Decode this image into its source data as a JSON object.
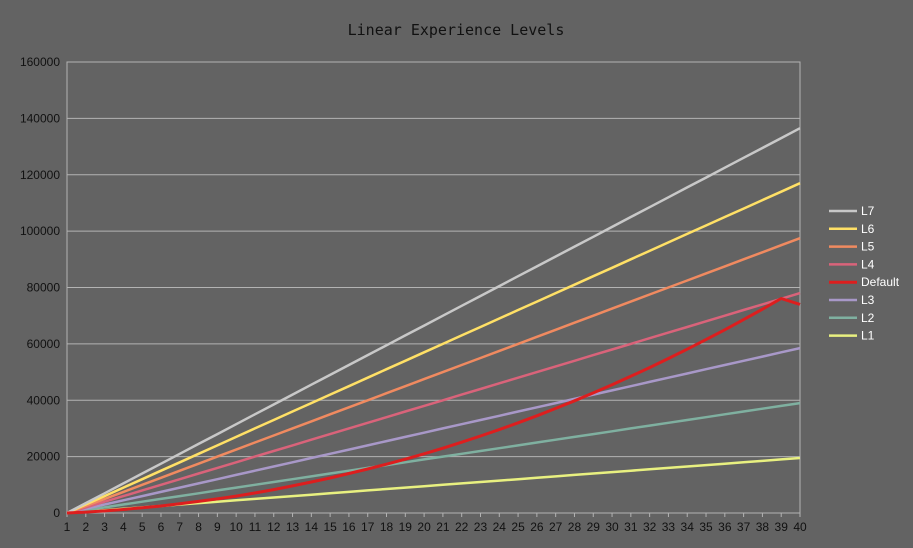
{
  "chart_data": {
    "type": "line",
    "title": "Linear Experience Levels",
    "xlabel": "",
    "ylabel": "",
    "x": [
      1,
      2,
      3,
      4,
      5,
      6,
      7,
      8,
      9,
      10,
      11,
      12,
      13,
      14,
      15,
      16,
      17,
      18,
      19,
      20,
      21,
      22,
      23,
      24,
      25,
      26,
      27,
      28,
      29,
      30,
      31,
      32,
      33,
      34,
      35,
      36,
      37,
      38,
      39,
      40
    ],
    "ylim": [
      0,
      160000
    ],
    "yticks": [
      0,
      20000,
      40000,
      60000,
      80000,
      100000,
      120000,
      140000,
      160000
    ],
    "grid": true,
    "legend_position": "right",
    "series": [
      {
        "name": "L7",
        "color": "#c8c8c8",
        "values": [
          0,
          3500,
          7000,
          10500,
          14000,
          17500,
          21000,
          24500,
          28000,
          31500,
          35000,
          38500,
          42000,
          45500,
          49000,
          52500,
          56000,
          59500,
          63000,
          66500,
          70000,
          73500,
          77000,
          80500,
          84000,
          87500,
          91000,
          94500,
          98000,
          101500,
          105000,
          108500,
          112000,
          115500,
          119000,
          122500,
          126000,
          129500,
          133000,
          136500
        ]
      },
      {
        "name": "L6",
        "color": "#ffe066",
        "values": [
          0,
          3000,
          6000,
          9000,
          12000,
          15000,
          18000,
          21000,
          24000,
          27000,
          30000,
          33000,
          36000,
          39000,
          42000,
          45000,
          48000,
          51000,
          54000,
          57000,
          60000,
          63000,
          66000,
          69000,
          72000,
          75000,
          78000,
          81000,
          84000,
          87000,
          90000,
          93000,
          96000,
          99000,
          102000,
          105000,
          108000,
          111000,
          114000,
          117000
        ]
      },
      {
        "name": "L5",
        "color": "#f08a60",
        "values": [
          0,
          2500,
          5000,
          7500,
          10000,
          12500,
          15000,
          17500,
          20000,
          22500,
          25000,
          27500,
          30000,
          32500,
          35000,
          37500,
          40000,
          42500,
          45000,
          47500,
          50000,
          52500,
          55000,
          57500,
          60000,
          62500,
          65000,
          67500,
          70000,
          72500,
          75000,
          77500,
          80000,
          82500,
          85000,
          87500,
          90000,
          92500,
          95000,
          97500
        ]
      },
      {
        "name": "L4",
        "color": "#d9637a",
        "values": [
          0,
          2000,
          4000,
          6000,
          8000,
          10000,
          12000,
          14000,
          16000,
          18000,
          20000,
          22000,
          24000,
          26000,
          28000,
          30000,
          32000,
          34000,
          36000,
          38000,
          40000,
          42000,
          44000,
          46000,
          48000,
          50000,
          52000,
          54000,
          56000,
          58000,
          60000,
          62000,
          64000,
          66000,
          68000,
          70000,
          72000,
          74000,
          76000,
          78000
        ]
      },
      {
        "name": "Default",
        "color": "#dd1e1e",
        "values": [
          0,
          330,
          750,
          1250,
          1850,
          2500,
          3250,
          4100,
          5000,
          6000,
          7100,
          8300,
          9600,
          11000,
          12400,
          14000,
          15600,
          17300,
          19100,
          21000,
          23000,
          25100,
          27300,
          29600,
          32000,
          34500,
          37100,
          39800,
          42600,
          45500,
          48500,
          51600,
          54800,
          58100,
          61500,
          65000,
          68600,
          72300,
          76100,
          74000
        ]
      },
      {
        "name": "L3",
        "color": "#a898c8",
        "values": [
          0,
          1500,
          3000,
          4500,
          6000,
          7500,
          9000,
          10500,
          12000,
          13500,
          15000,
          16500,
          18000,
          19500,
          21000,
          22500,
          24000,
          25500,
          27000,
          28500,
          30000,
          31500,
          33000,
          34500,
          36000,
          37500,
          39000,
          40500,
          42000,
          43500,
          45000,
          46500,
          48000,
          49500,
          51000,
          52500,
          54000,
          55500,
          57000,
          58500
        ]
      },
      {
        "name": "L2",
        "color": "#7fb0a0",
        "values": [
          0,
          1000,
          2000,
          3000,
          4000,
          5000,
          6000,
          7000,
          8000,
          9000,
          10000,
          11000,
          12000,
          13000,
          14000,
          15000,
          16000,
          17000,
          18000,
          19000,
          20000,
          21000,
          22000,
          23000,
          24000,
          25000,
          26000,
          27000,
          28000,
          29000,
          30000,
          31000,
          32000,
          33000,
          34000,
          35000,
          36000,
          37000,
          38000,
          39000
        ]
      },
      {
        "name": "L1",
        "color": "#e8f080",
        "values": [
          0,
          500,
          1000,
          1500,
          2000,
          2500,
          3000,
          3500,
          4000,
          4500,
          5000,
          5500,
          6000,
          6500,
          7000,
          7500,
          8000,
          8500,
          9000,
          9500,
          10000,
          10500,
          11000,
          11500,
          12000,
          12500,
          13000,
          13500,
          14000,
          14500,
          15000,
          15500,
          16000,
          16500,
          17000,
          17500,
          18000,
          18500,
          19000,
          19500
        ]
      }
    ]
  }
}
